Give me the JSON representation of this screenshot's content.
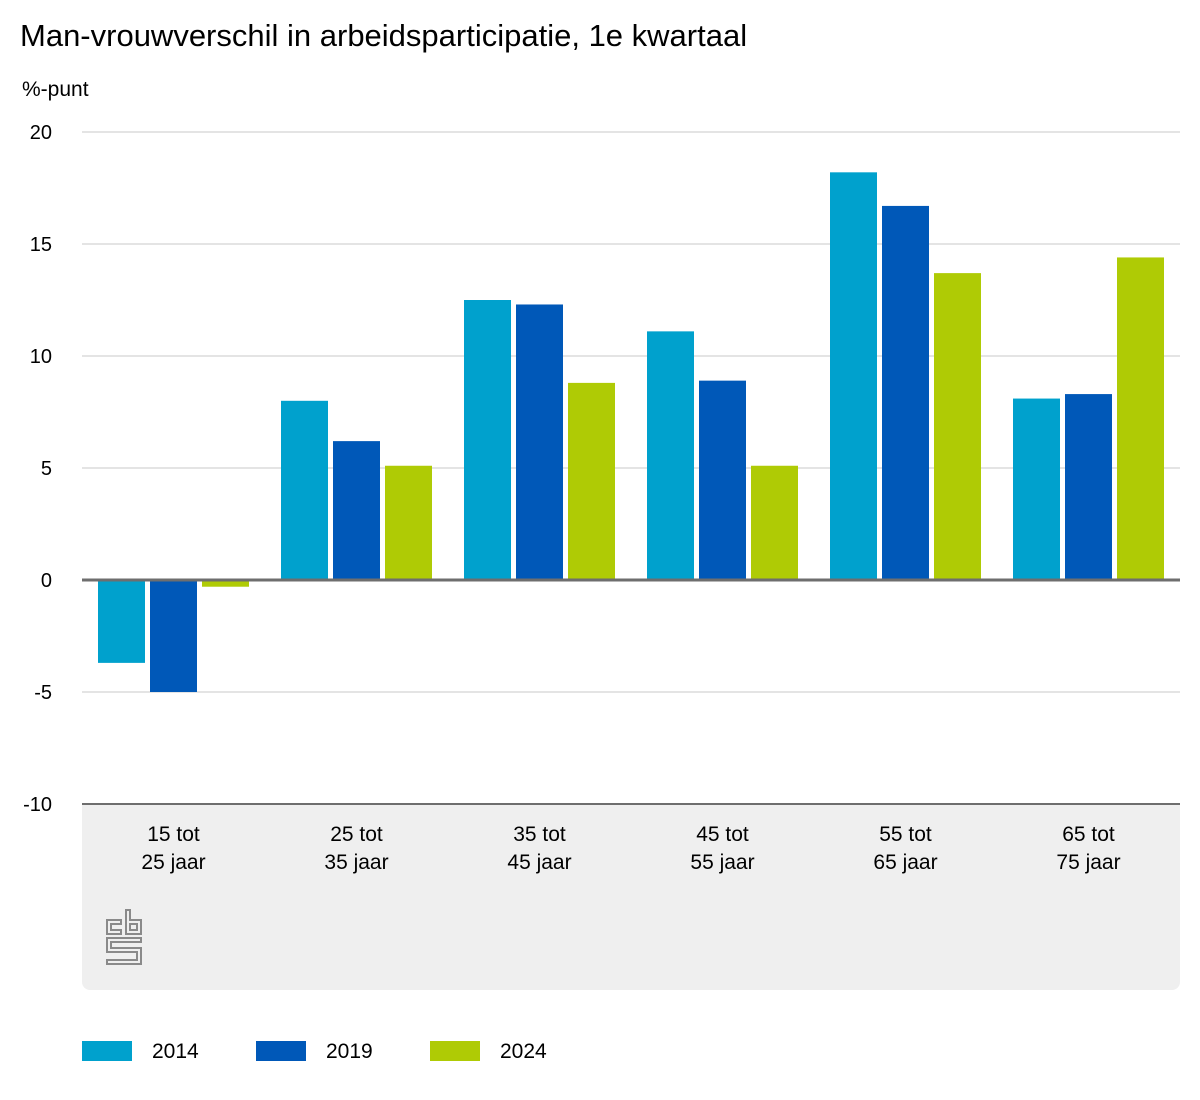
{
  "chart_data": {
    "type": "bar",
    "title": "Man-vrouwverschil in arbeidsparticipatie, 1e kwartaal",
    "ylabel": "%-punt",
    "xlabel": "",
    "ylim": [
      -10,
      20
    ],
    "yticks": [
      20,
      15,
      10,
      5,
      0,
      -5,
      -10
    ],
    "yticklabels": [
      "20",
      "15",
      "10",
      "5",
      "0",
      "-5",
      "-10"
    ],
    "categories": [
      [
        "15 tot",
        "25 jaar"
      ],
      [
        "25 tot",
        "35 jaar"
      ],
      [
        "35 tot",
        "45 jaar"
      ],
      [
        "45 tot",
        "55 jaar"
      ],
      [
        "55 tot",
        "65 jaar"
      ],
      [
        "65 tot",
        "75 jaar"
      ]
    ],
    "series": [
      {
        "name": "2014",
        "color": "#00a1cd",
        "values": [
          -3.7,
          8.0,
          12.5,
          11.1,
          18.2,
          8.1
        ]
      },
      {
        "name": "2019",
        "color": "#0058b8",
        "values": [
          -5.0,
          6.2,
          12.3,
          8.9,
          16.7,
          8.3
        ]
      },
      {
        "name": "2024",
        "color": "#afcb05",
        "values": [
          -0.3,
          5.1,
          8.8,
          5.1,
          13.7,
          14.4
        ]
      }
    ],
    "grid": true,
    "legend_position": "bottom-left",
    "panel_color": "#efefef",
    "logo_text": "cbs"
  }
}
